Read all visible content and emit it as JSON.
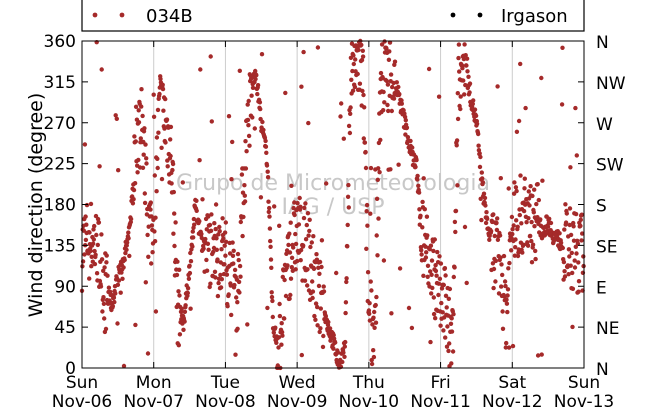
{
  "chart_data": {
    "type": "scatter",
    "title": "",
    "xlabel": "",
    "ylabel": "Wind direction (degree)",
    "ylim": [
      0,
      360
    ],
    "y_ticks": [
      0,
      45,
      90,
      135,
      180,
      225,
      270,
      315,
      360
    ],
    "y_right_ticks": [
      {
        "value": 0,
        "label": "N"
      },
      {
        "value": 45,
        "label": "NE"
      },
      {
        "value": 90,
        "label": "E"
      },
      {
        "value": 135,
        "label": "SE"
      },
      {
        "value": 180,
        "label": "S"
      },
      {
        "value": 225,
        "label": "SW"
      },
      {
        "value": 270,
        "label": "W"
      },
      {
        "value": 315,
        "label": "NW"
      },
      {
        "value": 360,
        "label": "N"
      }
    ],
    "x_ticks": [
      {
        "day": "Sun",
        "date": "Nov-06"
      },
      {
        "day": "Mon",
        "date": "Nov-07"
      },
      {
        "day": "Tue",
        "date": "Nov-08"
      },
      {
        "day": "Wed",
        "date": "Nov-09"
      },
      {
        "day": "Thu",
        "date": "Nov-10"
      },
      {
        "day": "Fri",
        "date": "Nov-11"
      },
      {
        "day": "Sat",
        "date": "Nov-12"
      },
      {
        "day": "Sun",
        "date": "Nov-13"
      }
    ],
    "xlim": [
      "Nov-06 00:00",
      "Nov-13 00:00"
    ],
    "grid": "vertical lines at day boundaries",
    "legend_position": "top",
    "series": [
      {
        "name": "034B",
        "color": "#a52a2a",
        "marker": "circle",
        "points_description_hour_deg": [
          [
            0,
            130
          ],
          [
            2,
            145
          ],
          [
            4,
            140
          ],
          [
            6,
            120
          ],
          [
            8,
            85
          ],
          [
            10,
            70
          ],
          [
            12,
            100
          ],
          [
            14,
            120
          ],
          [
            16,
            150
          ],
          [
            18,
            250
          ],
          [
            20,
            280
          ],
          [
            22,
            160
          ],
          [
            24,
            150
          ],
          [
            26,
            290
          ],
          [
            28,
            270
          ],
          [
            30,
            230
          ],
          [
            32,
            70
          ],
          [
            34,
            50
          ],
          [
            36,
            110
          ],
          [
            38,
            180
          ],
          [
            40,
            140
          ],
          [
            42,
            130
          ],
          [
            44,
            140
          ],
          [
            46,
            135
          ],
          [
            48,
            120
          ],
          [
            50,
            100
          ],
          [
            52,
            80
          ],
          [
            54,
            200
          ],
          [
            56,
            280
          ],
          [
            58,
            330
          ],
          [
            60,
            270
          ],
          [
            62,
            230
          ],
          [
            64,
            40
          ],
          [
            66,
            30
          ],
          [
            68,
            90
          ],
          [
            70,
            130
          ],
          [
            72,
            150
          ],
          [
            74,
            140
          ],
          [
            76,
            130
          ],
          [
            78,
            90
          ],
          [
            80,
            70
          ],
          [
            82,
            50
          ],
          [
            84,
            30
          ],
          [
            86,
            5
          ],
          [
            88,
            20
          ],
          [
            90,
            330
          ],
          [
            92,
            340
          ],
          [
            94,
            320
          ],
          [
            96,
            60
          ],
          [
            98,
            40
          ],
          [
            100,
            310
          ],
          [
            102,
            330
          ],
          [
            104,
            320
          ],
          [
            106,
            300
          ],
          [
            108,
            270
          ],
          [
            110,
            240
          ],
          [
            112,
            220
          ],
          [
            114,
            140
          ],
          [
            116,
            130
          ],
          [
            118,
            100
          ],
          [
            120,
            80
          ],
          [
            122,
            60
          ],
          [
            124,
            30
          ],
          [
            126,
            320
          ],
          [
            128,
            340
          ],
          [
            130,
            300
          ],
          [
            132,
            270
          ],
          [
            134,
            200
          ],
          [
            136,
            150
          ],
          [
            138,
            130
          ],
          [
            140,
            110
          ],
          [
            142,
            60
          ],
          [
            144,
            160
          ],
          [
            146,
            165
          ],
          [
            148,
            170
          ],
          [
            150,
            160
          ],
          [
            152,
            165
          ],
          [
            154,
            150
          ],
          [
            156,
            160
          ],
          [
            158,
            145
          ],
          [
            160,
            140
          ],
          [
            162,
            135
          ],
          [
            164,
            130
          ],
          [
            166,
            125
          ],
          [
            168,
            130
          ]
        ]
      },
      {
        "name": "Irgason",
        "color": "#000000",
        "marker": "circle",
        "points_description_hour_deg": []
      }
    ]
  },
  "watermark": {
    "line1": "Grupo de Micrometeorologia",
    "line2": "IAG / USP"
  }
}
